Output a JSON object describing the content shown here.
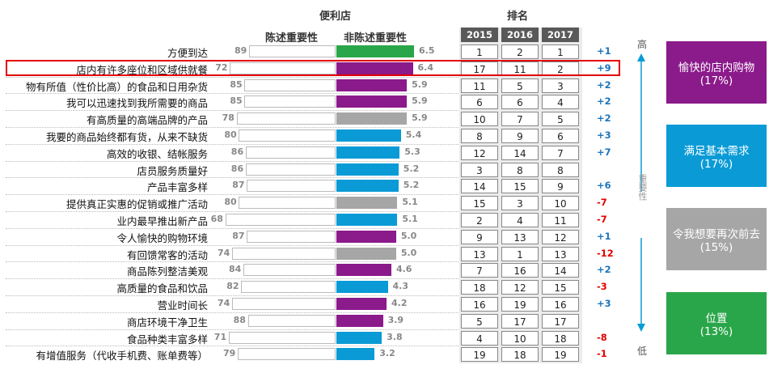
{
  "header": {
    "store_type": "便利店",
    "stated_label": "陈述重要性",
    "nonstated_label": "非陈述重要性",
    "rank_title": "排名"
  },
  "years": [
    "2015",
    "2016",
    "2017"
  ],
  "axis": {
    "high": "高",
    "low": "低",
    "label": "重要性"
  },
  "colors": {
    "green": "#2aa64a",
    "purple": "#8b1a8b",
    "gray": "#a6a6a6",
    "blue": "#0a9bd6",
    "positive": "#1c75bc",
    "negative": "#e30000",
    "highlight": "#e30000"
  },
  "chart_data": {
    "type": "bar",
    "title": "便利店",
    "series_names": [
      "陈述重要性",
      "非陈述重要性"
    ],
    "rows": [
      {
        "label": "方便到达",
        "stated": 89,
        "nonstated": 6.5,
        "color": "green",
        "ranks": [
          1,
          2,
          1
        ],
        "change": "+1"
      },
      {
        "label": "店内有许多座位和区域供就餐",
        "stated": 72,
        "nonstated": 6.4,
        "color": "purple",
        "ranks": [
          17,
          11,
          2
        ],
        "change": "+9"
      },
      {
        "label": "物有所值（性价比高）的食品和日用杂货",
        "stated": 85,
        "nonstated": 5.9,
        "color": "purple",
        "ranks": [
          11,
          5,
          3
        ],
        "change": "+2"
      },
      {
        "label": "我可以迅速找到我所需要的商品",
        "stated": 85,
        "nonstated": 5.9,
        "color": "purple",
        "ranks": [
          6,
          6,
          4
        ],
        "change": "+2"
      },
      {
        "label": "有高质量的高端品牌的产品",
        "stated": 78,
        "nonstated": 5.9,
        "color": "gray",
        "ranks": [
          10,
          7,
          5
        ],
        "change": "+2"
      },
      {
        "label": "我要的商品始终都有货，从来不缺货",
        "stated": 80,
        "nonstated": 5.4,
        "color": "blue",
        "ranks": [
          8,
          9,
          6
        ],
        "change": "+3"
      },
      {
        "label": "高效的收银、结帐服务",
        "stated": 86,
        "nonstated": 5.3,
        "color": "blue",
        "ranks": [
          12,
          14,
          7
        ],
        "change": "+7"
      },
      {
        "label": "店员服务质量好",
        "stated": 86,
        "nonstated": 5.2,
        "color": "blue",
        "ranks": [
          3,
          8,
          8
        ],
        "change": ""
      },
      {
        "label": "产品丰富多样",
        "stated": 87,
        "nonstated": 5.2,
        "color": "blue",
        "ranks": [
          14,
          15,
          9
        ],
        "change": "+6"
      },
      {
        "label": "提供真正实惠的促销或推广活动",
        "stated": 80,
        "nonstated": 5.1,
        "color": "gray",
        "ranks": [
          15,
          3,
          10
        ],
        "change": "-7"
      },
      {
        "label": "业内最早推出新产品",
        "stated": 68,
        "nonstated": 5.1,
        "color": "blue",
        "ranks": [
          2,
          4,
          11
        ],
        "change": "-7"
      },
      {
        "label": "令人愉快的购物环境",
        "stated": 87,
        "nonstated": 5.0,
        "color": "purple",
        "ranks": [
          9,
          13,
          12
        ],
        "change": "+1"
      },
      {
        "label": "有回馈常客的活动",
        "stated": 74,
        "nonstated": 5.0,
        "color": "gray",
        "ranks": [
          13,
          1,
          13
        ],
        "change": "-12"
      },
      {
        "label": "商品陈列整洁美观",
        "stated": 84,
        "nonstated": 4.6,
        "color": "purple",
        "ranks": [
          7,
          16,
          14
        ],
        "change": "+2"
      },
      {
        "label": "高质量的食品和饮品",
        "stated": 82,
        "nonstated": 4.3,
        "color": "blue",
        "ranks": [
          18,
          12,
          15
        ],
        "change": "-3"
      },
      {
        "label": "营业时间长",
        "stated": 74,
        "nonstated": 4.2,
        "color": "purple",
        "ranks": [
          16,
          19,
          16
        ],
        "change": "+3"
      },
      {
        "label": "商店环境干净卫生",
        "stated": 88,
        "nonstated": 3.9,
        "color": "purple",
        "ranks": [
          5,
          17,
          17
        ],
        "change": ""
      },
      {
        "label": "食品种类丰富多样",
        "stated": 71,
        "nonstated": 3.8,
        "color": "blue",
        "ranks": [
          4,
          10,
          18
        ],
        "change": "-8"
      },
      {
        "label": "有增值服务（代收手机费、账单费等）",
        "stated": 79,
        "nonstated": 3.2,
        "color": "blue",
        "ranks": [
          19,
          18,
          19
        ],
        "change": "-1"
      }
    ]
  },
  "pillars": [
    {
      "title": "愉快的店内购物",
      "pct": "(17%)",
      "color": "#8b1a8b"
    },
    {
      "title": "满足基本需求",
      "pct": "(17%)",
      "color": "#0a9bd6"
    },
    {
      "title": "令我想要再次前去",
      "pct": "(15%)",
      "color": "#a6a6a6"
    },
    {
      "title": "位置",
      "pct": "(13%)",
      "color": "#2aa64a"
    }
  ]
}
